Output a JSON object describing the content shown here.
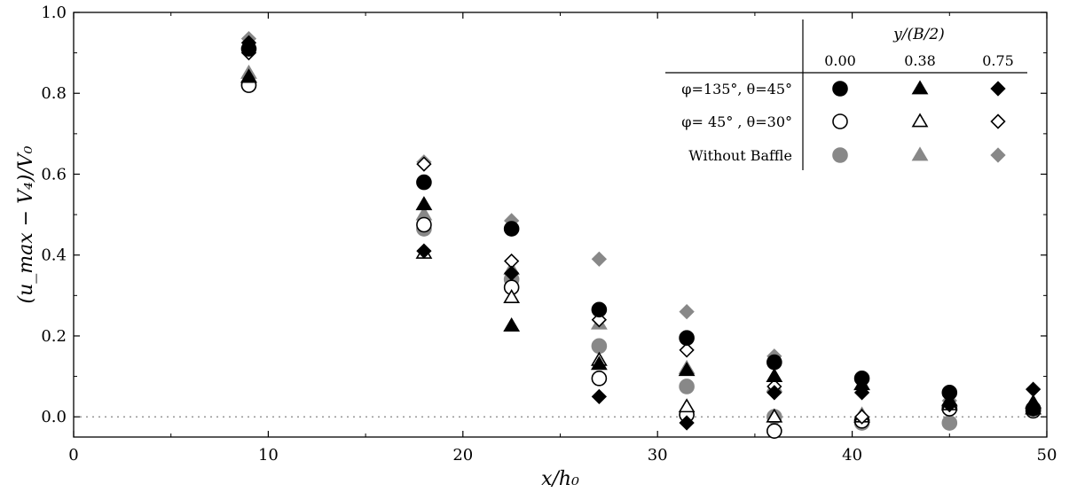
{
  "chart_data": {
    "type": "scatter",
    "title": "",
    "xlabel": "x/h₀",
    "ylabel": "(u_max − V₄)/V₀",
    "xlim": [
      0,
      50
    ],
    "ylim": [
      -0.05,
      1.0
    ],
    "xticks": [
      "0",
      "10",
      "20",
      "30",
      "40",
      "50"
    ],
    "yticks": [
      "0.0",
      "0.2",
      "0.4",
      "0.6",
      "0.8",
      "1.0"
    ],
    "reference_line_y": 0.0,
    "legend": {
      "placement": "top-right",
      "header": "y/(B/2)",
      "columns": [
        "0.00",
        "0.38",
        "0.75"
      ],
      "rows": [
        "φ=135°, θ=45°",
        "φ= 45° , θ=30°",
        "Without Baffle"
      ]
    },
    "colors": {
      "black": "#000000",
      "gray": "#888888",
      "open": "#ffffff"
    },
    "series": [
      {
        "case": "φ=135°, θ=45°",
        "y_over_B2": "0.00",
        "marker": "circle",
        "style": "filled-black",
        "x": [
          9,
          18,
          22.5,
          27,
          31.5,
          36,
          40.5,
          45,
          49.3
        ],
        "y": [
          0.91,
          0.58,
          0.465,
          0.265,
          0.195,
          0.135,
          0.095,
          0.06,
          0.02
        ]
      },
      {
        "case": "φ=135°, θ=45°",
        "y_over_B2": "0.38",
        "marker": "triangle",
        "style": "filled-black",
        "x": [
          9,
          18,
          22.5,
          27,
          31.5,
          36,
          40.5,
          45,
          49.3
        ],
        "y": [
          0.84,
          0.525,
          0.225,
          0.13,
          0.115,
          0.1,
          0.08,
          0.04,
          0.035
        ]
      },
      {
        "case": "φ=135°, θ=45°",
        "y_over_B2": "0.75",
        "marker": "diamond",
        "style": "filled-black",
        "x": [
          9,
          18,
          22.5,
          27,
          31.5,
          36,
          40.5,
          45,
          49.3
        ],
        "y": [
          0.925,
          0.41,
          0.355,
          0.05,
          -0.015,
          0.06,
          0.06,
          0.03,
          0.068
        ]
      },
      {
        "case": "φ= 45° , θ=30°",
        "y_over_B2": "0.00",
        "marker": "circle",
        "style": "open",
        "x": [
          9,
          18,
          22.5,
          27,
          31.5,
          36,
          40.5,
          45,
          49.3
        ],
        "y": [
          0.82,
          0.475,
          0.32,
          0.095,
          0.005,
          -0.035,
          -0.01,
          0.02,
          0.015
        ]
      },
      {
        "case": "φ= 45° , θ=30°",
        "y_over_B2": "0.38",
        "marker": "triangle",
        "style": "open",
        "x": [
          9,
          18,
          22.5,
          27,
          31.5,
          36,
          40.5,
          45,
          49.3
        ],
        "y": [
          0.84,
          0.405,
          0.295,
          0.14,
          0.025,
          0.0,
          0.0,
          0.03,
          0.02
        ]
      },
      {
        "case": "φ= 45° , θ=30°",
        "y_over_B2": "0.75",
        "marker": "diamond",
        "style": "open",
        "x": [
          9,
          18,
          22.5,
          27,
          31.5,
          36,
          40.5,
          45,
          49.3
        ],
        "y": [
          0.9,
          0.625,
          0.385,
          0.24,
          0.165,
          0.075,
          0.0,
          0.03,
          0.02
        ]
      },
      {
        "case": "Without Baffle",
        "y_over_B2": "0.00",
        "marker": "circle",
        "style": "filled-gray",
        "x": [
          9,
          18,
          22.5,
          27,
          31.5,
          36,
          40.5,
          45,
          49.3
        ],
        "y": [
          0.82,
          0.465,
          0.34,
          0.175,
          0.075,
          0.0,
          -0.015,
          -0.015,
          0.02
        ]
      },
      {
        "case": "Without Baffle",
        "y_over_B2": "0.38",
        "marker": "triangle",
        "style": "filled-gray",
        "x": [
          9,
          18,
          22.5,
          27,
          31.5,
          36,
          40.5,
          45,
          49.3
        ],
        "y": [
          0.85,
          0.5,
          0.365,
          0.23,
          0.12,
          0.075,
          0.005,
          0.035,
          0.02
        ]
      },
      {
        "case": "Without Baffle",
        "y_over_B2": "0.75",
        "marker": "diamond",
        "style": "filled-gray",
        "x": [
          9,
          18,
          22.5,
          27,
          31.5,
          36,
          40.5,
          45,
          49.3
        ],
        "y": [
          0.935,
          0.63,
          0.485,
          0.39,
          0.26,
          0.15,
          0.09,
          0.04,
          0.02
        ]
      }
    ]
  }
}
